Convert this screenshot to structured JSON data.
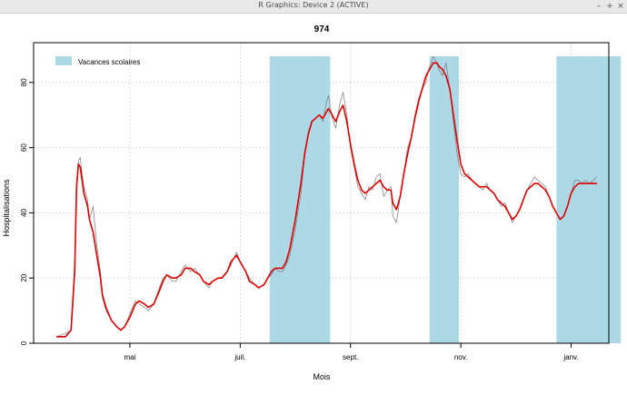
{
  "window": {
    "title": "R Graphics: Device 2 (ACTIVE)",
    "buttons": {
      "minimize": "–",
      "maximize": "+",
      "close": "×"
    }
  },
  "chart_data": {
    "type": "line",
    "title": "974",
    "xlabel": "Mois",
    "ylabel": "Hospitalisations",
    "x_tick_labels": [
      "mai",
      "juil.",
      "sept.",
      "nov.",
      "janv."
    ],
    "y_ticks": [
      0,
      20,
      40,
      60,
      80
    ],
    "ylim": [
      0,
      90
    ],
    "xlim": [
      0,
      300
    ],
    "x_ticks_day": [
      40,
      100,
      160,
      220,
      280
    ],
    "grid": true,
    "legend": {
      "position": "top-left",
      "label": "Vacances scolaires"
    },
    "colors": {
      "vacances": "#add8e6",
      "smoothed": "#dd0000",
      "raw": "#7a7a7a",
      "grid": "#d3d3d3"
    },
    "vacances_scolaires": [
      [
        116,
        149
      ],
      [
        203,
        219
      ],
      [
        272,
        307
      ]
    ],
    "series": [
      {
        "style": "raw",
        "x": [
          0,
          5,
          8,
          10,
          11,
          12,
          13,
          14,
          15,
          17,
          18,
          20,
          22,
          24,
          25,
          27,
          30,
          33,
          35,
          37,
          40,
          43,
          45,
          48,
          50,
          53,
          56,
          58,
          60,
          63,
          65,
          68,
          70,
          73,
          75,
          78,
          80,
          83,
          85,
          88,
          90,
          93,
          95,
          98,
          100,
          103,
          105,
          108,
          110,
          113,
          115,
          117,
          119,
          121,
          123,
          125,
          127,
          130,
          133,
          135,
          137,
          139,
          141,
          143,
          145,
          147,
          148,
          150,
          152,
          154,
          156,
          158,
          160,
          162,
          164,
          166,
          168,
          170,
          172,
          174,
          176,
          178,
          180,
          182,
          183,
          185,
          187,
          189,
          191,
          193,
          195,
          197,
          199,
          201,
          203,
          205,
          207,
          208,
          210,
          212,
          214,
          216,
          218,
          220,
          222,
          224,
          226,
          228,
          230,
          232,
          234,
          236,
          238,
          240,
          242,
          244,
          246,
          248,
          250,
          252,
          254,
          256,
          258,
          260,
          262,
          264,
          266,
          268,
          270,
          272,
          274,
          276,
          278,
          280,
          282,
          284,
          286,
          288,
          290,
          292,
          294
        ],
        "y": [
          2,
          3,
          4,
          25,
          50,
          56,
          57,
          52,
          48,
          44,
          38,
          42,
          30,
          22,
          14,
          10,
          7,
          5,
          4,
          5,
          9,
          13,
          12,
          11,
          10,
          12,
          17,
          20,
          21,
          19,
          19,
          22,
          24,
          22,
          23,
          21,
          19,
          17,
          19,
          20,
          20,
          22,
          24,
          28,
          25,
          22,
          20,
          18,
          17,
          18,
          20,
          21,
          23,
          22,
          22,
          24,
          27,
          35,
          46,
          57,
          65,
          68,
          69,
          70,
          68,
          74,
          76,
          69,
          66,
          73,
          77,
          70,
          60,
          54,
          48,
          46,
          44,
          48,
          47,
          51,
          52,
          45,
          47,
          48,
          39,
          37,
          45,
          52,
          60,
          63,
          70,
          75,
          78,
          80,
          85,
          88,
          86,
          84,
          82,
          86,
          78,
          68,
          58,
          52,
          51,
          52,
          50,
          49,
          48,
          47,
          49,
          47,
          46,
          44,
          42,
          43,
          40,
          37,
          39,
          41,
          44,
          47,
          49,
          51,
          50,
          49,
          48,
          45,
          42,
          40,
          38,
          39,
          42,
          46,
          50,
          50,
          49,
          50,
          49,
          50,
          51
        ],
        "note": ""
      },
      {
        "style": "smoothed",
        "x": [
          0,
          5,
          8,
          10,
          11,
          12,
          13,
          14,
          15,
          17,
          18,
          20,
          22,
          24,
          25,
          27,
          30,
          33,
          35,
          37,
          40,
          43,
          45,
          48,
          50,
          53,
          56,
          58,
          60,
          63,
          65,
          68,
          70,
          73,
          75,
          78,
          80,
          83,
          85,
          88,
          90,
          93,
          95,
          98,
          100,
          103,
          105,
          108,
          110,
          113,
          115,
          117,
          119,
          121,
          123,
          125,
          127,
          130,
          133,
          135,
          137,
          139,
          141,
          143,
          145,
          147,
          148,
          150,
          152,
          154,
          156,
          158,
          160,
          162,
          164,
          166,
          168,
          170,
          172,
          174,
          176,
          178,
          180,
          182,
          183,
          185,
          187,
          189,
          191,
          193,
          195,
          197,
          199,
          201,
          203,
          205,
          207,
          208,
          210,
          212,
          214,
          216,
          218,
          220,
          222,
          224,
          226,
          228,
          230,
          232,
          234,
          236,
          238,
          240,
          242,
          244,
          246,
          248,
          250,
          252,
          254,
          256,
          258,
          260,
          262,
          264,
          266,
          268,
          270,
          272,
          274,
          276,
          278,
          280,
          282,
          284,
          286,
          288,
          290,
          292,
          294
        ],
        "y": [
          2,
          2,
          4,
          22,
          48,
          55,
          54,
          50,
          46,
          42,
          38,
          34,
          27,
          20,
          15,
          11,
          7,
          5,
          4,
          5,
          8,
          12,
          13,
          12,
          11,
          12,
          16,
          19,
          21,
          20,
          20,
          21,
          23,
          23,
          22,
          21,
          19,
          18,
          19,
          20,
          20,
          22,
          25,
          27,
          25,
          22,
          19,
          18,
          17,
          18,
          20,
          22,
          23,
          23,
          23,
          25,
          29,
          38,
          49,
          58,
          64,
          68,
          69,
          70,
          69,
          71,
          72,
          70,
          68,
          71,
          73,
          68,
          61,
          55,
          50,
          47,
          46,
          47,
          48,
          49,
          50,
          48,
          47,
          47,
          43,
          41,
          45,
          52,
          58,
          63,
          69,
          74,
          78,
          82,
          84,
          86,
          86,
          85,
          84,
          82,
          78,
          70,
          62,
          55,
          52,
          51,
          50,
          49,
          48,
          48,
          48,
          47,
          46,
          44,
          43,
          42,
          40,
          38,
          39,
          41,
          44,
          47,
          48,
          49,
          49,
          48,
          47,
          45,
          42,
          40,
          38,
          39,
          42,
          46,
          48,
          49,
          49,
          49,
          49,
          49,
          49
        ]
      }
    ]
  }
}
